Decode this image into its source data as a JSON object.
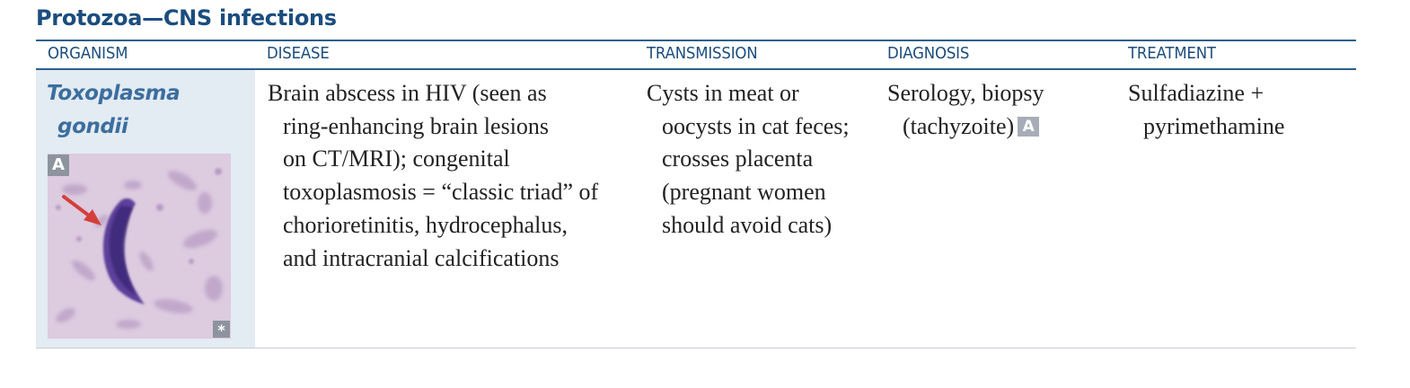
{
  "title": "Protozoa—CNS infections",
  "columns": [
    "ORGANISM",
    "DISEASE",
    "TRANSMISSION",
    "DIAGNOSIS",
    "TREATMENT"
  ],
  "row": {
    "organism": [
      "Toxoplasma",
      "gondii"
    ],
    "disease": [
      "Brain abscess in HIV (seen as",
      "ring-enhancing brain lesions",
      "on CT/MRI); congenital",
      "toxoplasmosis = “classic triad” of",
      "chorioretinitis, hydrocephalus,",
      "and intracranial calcifications"
    ],
    "transmission": [
      "Cysts in meat or",
      "oocysts in cat feces;",
      "crosses placenta",
      "(pregnant women",
      "should avoid cats)"
    ],
    "diagnosis": [
      "Serology, biopsy",
      "(tachyzoite)"
    ],
    "diagnosis_badge": "A",
    "treatment": [
      "Sulfadiazine +",
      "pyrimethamine"
    ],
    "image_label": "A",
    "image_corner_mark": "*"
  },
  "colors": {
    "title": "#1b4d7e",
    "organism": "#3c6e9e",
    "organism_cell_bg": "#e3ebf3",
    "rule": "#2e5f8c",
    "badge": "#a7adb7"
  },
  "icons": {
    "image_arrow": "red-arrow-icon"
  }
}
